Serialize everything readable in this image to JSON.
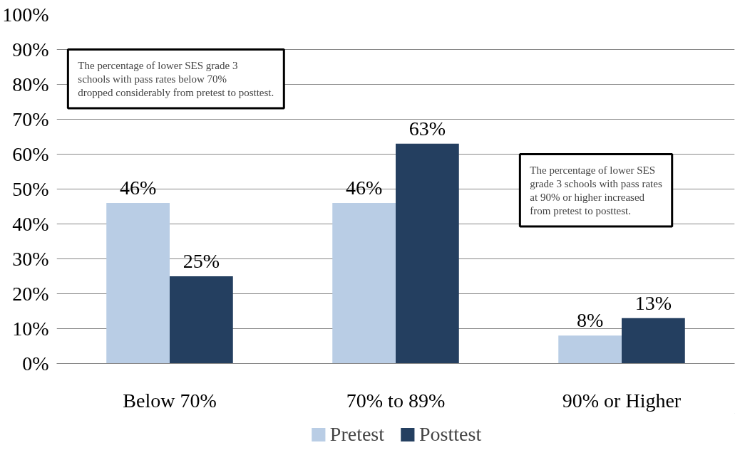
{
  "chart_data": {
    "type": "bar",
    "categories": [
      "Below 70%",
      "70% to 89%",
      "90% or Higher"
    ],
    "series": [
      {
        "name": "Pretest",
        "color": "#b9cde5",
        "values": [
          46,
          46,
          8
        ],
        "value_labels": [
          "46%",
          "46%",
          "8%"
        ]
      },
      {
        "name": "Posttest",
        "color": "#243f60",
        "values": [
          25,
          63,
          13
        ],
        "value_labels": [
          "25%",
          "63%",
          "13%"
        ]
      }
    ],
    "ylim": [
      0,
      100
    ],
    "yticks": [
      {
        "value": 0,
        "label": "0%"
      },
      {
        "value": 10,
        "label": "10%"
      },
      {
        "value": 20,
        "label": "20%"
      },
      {
        "value": 30,
        "label": "30%"
      },
      {
        "value": 40,
        "label": "40%"
      },
      {
        "value": 50,
        "label": "50%"
      },
      {
        "value": 60,
        "label": "60%"
      },
      {
        "value": 70,
        "label": "70%"
      },
      {
        "value": 80,
        "label": "80%"
      },
      {
        "value": 90,
        "label": "90%"
      },
      {
        "value": 100,
        "label": "100%"
      }
    ],
    "grid": "y",
    "legend": "bottom",
    "annotations": [
      "The percentage of lower SES grade 3\nschools with pass rates below 70%\ndropped considerably from pretest to posttest.",
      "The percentage of lower SES\ngrade 3 schools with pass rates\nat 90% or higher increased\nfrom pretest to posttest."
    ]
  }
}
